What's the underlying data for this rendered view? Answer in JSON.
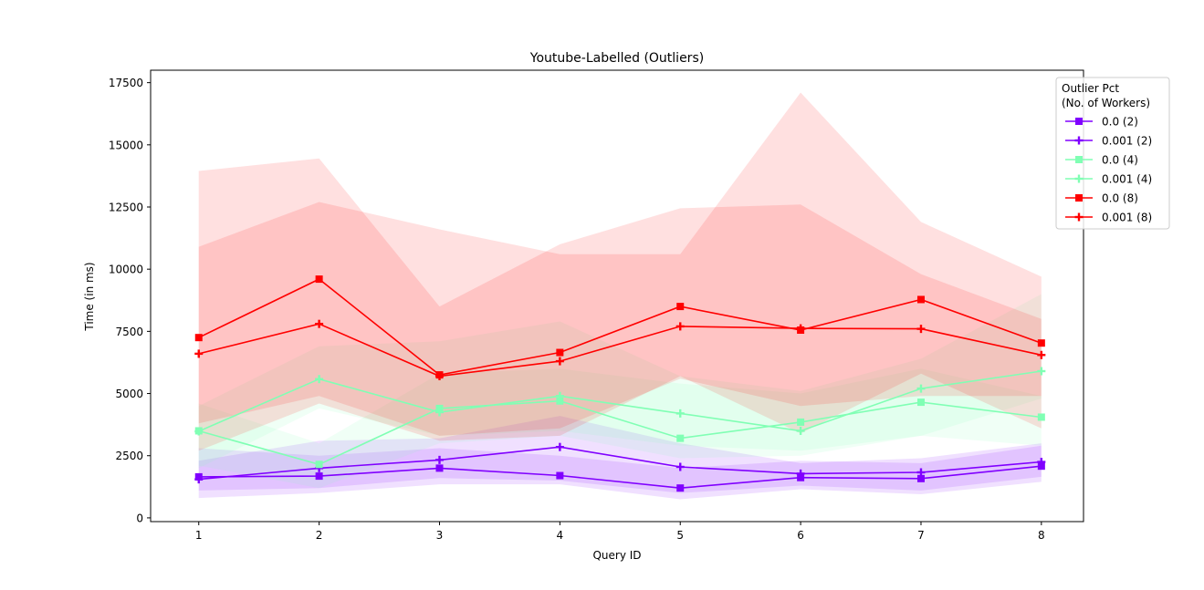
{
  "chart_data": {
    "type": "line",
    "title": "Youtube-Labelled (Outliers)",
    "xlabel": "Query ID",
    "ylabel": "Time (in ms)",
    "x": [
      1,
      2,
      3,
      4,
      5,
      6,
      7,
      8
    ],
    "xlim": [
      0.6,
      8.35
    ],
    "ylim": [
      -150,
      18000
    ],
    "yticks": [
      0,
      2500,
      5000,
      7500,
      10000,
      12500,
      15000,
      17500
    ],
    "xticks": [
      1,
      2,
      3,
      4,
      5,
      6,
      7,
      8
    ],
    "grid": false,
    "legend": {
      "title_lines": [
        "Outlier Pct",
        "(No. of Workers)"
      ],
      "placement": "upper-right-outside"
    },
    "series": [
      {
        "name": "0.0 (2)",
        "color": "#8000ff",
        "marker": "square",
        "values": [
          1650,
          1680,
          2000,
          1700,
          1200,
          1620,
          1580,
          2080
        ],
        "band_low": [
          1100,
          1200,
          1600,
          1500,
          1000,
          1300,
          1100,
          1650
        ],
        "band_high": [
          2800,
          2500,
          2800,
          2500,
          2000,
          2300,
          2200,
          2900
        ]
      },
      {
        "name": "0.001 (2)",
        "color": "#8000ff",
        "marker": "plus",
        "values": [
          1550,
          2000,
          2330,
          2850,
          2050,
          1780,
          1830,
          2250
        ],
        "band_low": [
          800,
          1000,
          1350,
          1350,
          750,
          1150,
          950,
          1450
        ],
        "band_high": [
          2300,
          3100,
          3200,
          4100,
          3000,
          2200,
          2400,
          3000
        ]
      },
      {
        "name": "0.0 (4)",
        "color": "#80ffb4",
        "marker": "square",
        "values": [
          3500,
          2150,
          4400,
          4700,
          3200,
          3850,
          4650,
          4050
        ],
        "band_low": [
          2100,
          1200,
          3000,
          3300,
          2400,
          2500,
          3300,
          2900
        ],
        "band_high": [
          4600,
          3000,
          5800,
          6000,
          5400,
          5000,
          6000,
          4900
        ]
      },
      {
        "name": "0.001 (4)",
        "color": "#80ffb4",
        "marker": "plus",
        "values": [
          3480,
          5580,
          4250,
          4900,
          4200,
          3500,
          5200,
          5900
        ],
        "band_low": [
          2000,
          4400,
          3300,
          3500,
          2900,
          2700,
          3300,
          4800
        ],
        "band_high": [
          4500,
          6900,
          7100,
          7900,
          5700,
          5100,
          6400,
          9000
        ]
      },
      {
        "name": "0.0 (8)",
        "color": "#ff0000",
        "marker": "square",
        "values": [
          7250,
          9600,
          5750,
          6650,
          8500,
          7550,
          8780,
          7030
        ],
        "band_low": [
          3800,
          4900,
          3300,
          3600,
          5600,
          4500,
          4900,
          4900
        ],
        "band_high": [
          13950,
          14450,
          8500,
          11000,
          12450,
          12600,
          9800,
          8000
        ]
      },
      {
        "name": "0.001 (8)",
        "color": "#ff0000",
        "marker": "plus",
        "values": [
          6600,
          7800,
          5700,
          6300,
          7700,
          7620,
          7600,
          6550
        ],
        "band_low": [
          2700,
          4600,
          3100,
          3300,
          5700,
          3400,
          5800,
          3600
        ],
        "band_high": [
          10900,
          12700,
          11600,
          10600,
          10600,
          17100,
          11900,
          9700
        ]
      }
    ]
  }
}
